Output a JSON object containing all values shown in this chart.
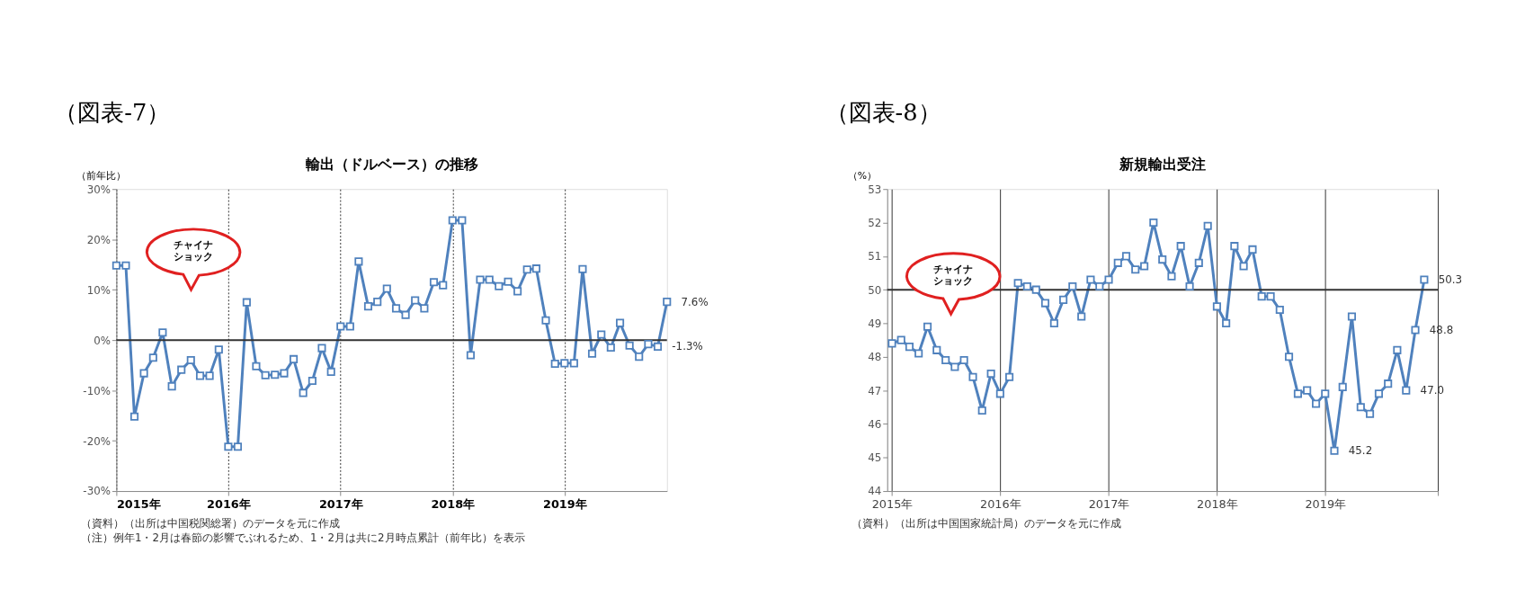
{
  "chart_data": [
    {
      "type": "line",
      "subtitle": "（図表-7）",
      "title": "輸出（ドルベース）の推移",
      "ylabel": "（前年比）",
      "x": [
        "2015-01",
        "2015-02",
        "2015-03",
        "2015-04",
        "2015-05",
        "2015-06",
        "2015-07",
        "2015-08",
        "2015-09",
        "2015-10",
        "2015-11",
        "2015-12",
        "2016-01",
        "2016-02",
        "2016-03",
        "2016-04",
        "2016-05",
        "2016-06",
        "2016-07",
        "2016-08",
        "2016-09",
        "2016-10",
        "2016-11",
        "2016-12",
        "2017-01",
        "2017-02",
        "2017-03",
        "2017-04",
        "2017-05",
        "2017-06",
        "2017-07",
        "2017-08",
        "2017-09",
        "2017-10",
        "2017-11",
        "2017-12",
        "2018-01",
        "2018-02",
        "2018-03",
        "2018-04",
        "2018-05",
        "2018-06",
        "2018-07",
        "2018-08",
        "2018-09",
        "2018-10",
        "2018-11",
        "2018-12",
        "2019-01",
        "2019-02",
        "2019-03",
        "2019-04",
        "2019-05",
        "2019-06",
        "2019-07",
        "2019-08",
        "2019-09",
        "2019-10",
        "2019-11",
        "2019-12"
      ],
      "xlim": [
        "2015-01",
        "2019-12"
      ],
      "xticks": [
        {
          "value": "2015-01",
          "label": "2015年"
        },
        {
          "value": "2016-01",
          "label": "2016年"
        },
        {
          "value": "2017-01",
          "label": "2017年"
        },
        {
          "value": "2018-01",
          "label": "2018年"
        },
        {
          "value": "2019-01",
          "label": "2019年"
        }
      ],
      "ylim": [
        -30,
        30
      ],
      "yticks": [
        {
          "value": -30,
          "label": "-30%"
        },
        {
          "value": -20,
          "label": "-20%"
        },
        {
          "value": -10,
          "label": "-10%"
        },
        {
          "value": 0,
          "label": "0%"
        },
        {
          "value": 10,
          "label": "10%"
        },
        {
          "value": 20,
          "label": "20%"
        },
        {
          "value": 30,
          "label": "30%"
        }
      ],
      "grid": "x",
      "marker": "square",
      "line_style": "solid",
      "ref_lines": [
        {
          "axis": "y",
          "value": 0
        }
      ],
      "series": [
        {
          "color": "#4f81bd",
          "values": [
            14.8,
            14.8,
            -15.2,
            -6.6,
            -3.5,
            1.5,
            -9.2,
            -5.9,
            -4.0,
            -7.1,
            -7.1,
            -1.9,
            -21.2,
            -21.2,
            7.5,
            -5.2,
            -7.0,
            -6.9,
            -6.6,
            -3.8,
            -10.5,
            -8.1,
            -1.6,
            -6.3,
            2.7,
            2.7,
            15.6,
            6.7,
            7.6,
            10.2,
            6.3,
            5.0,
            7.9,
            6.3,
            11.5,
            10.9,
            23.8,
            23.8,
            -3.0,
            12.0,
            12.0,
            10.7,
            11.6,
            9.7,
            14.0,
            14.2,
            3.9,
            -4.7,
            -4.6,
            -4.6,
            14.1,
            -2.7,
            1.1,
            -1.5,
            3.4,
            -1.1,
            -3.3,
            -0.8,
            -1.3,
            7.6
          ],
          "value_labels": [
            null,
            null,
            null,
            null,
            null,
            null,
            null,
            null,
            null,
            null,
            null,
            null,
            null,
            null,
            null,
            null,
            null,
            null,
            null,
            null,
            null,
            null,
            null,
            null,
            null,
            null,
            null,
            null,
            null,
            null,
            null,
            null,
            null,
            null,
            null,
            null,
            null,
            null,
            null,
            null,
            null,
            null,
            null,
            null,
            null,
            null,
            null,
            null,
            null,
            null,
            null,
            null,
            null,
            null,
            null,
            null,
            null,
            null,
            "-1.3%",
            "7.6%"
          ]
        }
      ],
      "annotations": [
        "チャイナショック",
        "（資料）（出所は中国税関総署）のデータを元に作成",
        "（注）例年1・2月は春節の影響でぶれるため、1・2月は共に2月時点累計（前年比）を表示"
      ]
    },
    {
      "type": "line",
      "subtitle": "（図表-8）",
      "title": "新規輸出受注",
      "ylabel": "（%）",
      "x": [
        "2015-01",
        "2015-02",
        "2015-03",
        "2015-04",
        "2015-05",
        "2015-06",
        "2015-07",
        "2015-08",
        "2015-09",
        "2015-10",
        "2015-11",
        "2015-12",
        "2016-01",
        "2016-02",
        "2016-03",
        "2016-04",
        "2016-05",
        "2016-06",
        "2016-07",
        "2016-08",
        "2016-09",
        "2016-10",
        "2016-11",
        "2016-12",
        "2017-01",
        "2017-02",
        "2017-03",
        "2017-04",
        "2017-05",
        "2017-06",
        "2017-07",
        "2017-08",
        "2017-09",
        "2017-10",
        "2017-11",
        "2017-12",
        "2018-01",
        "2018-02",
        "2018-03",
        "2018-04",
        "2018-05",
        "2018-06",
        "2018-07",
        "2018-08",
        "2018-09",
        "2018-10",
        "2018-11",
        "2018-12",
        "2019-01",
        "2019-02",
        "2019-03",
        "2019-04",
        "2019-05",
        "2019-06",
        "2019-07",
        "2019-08",
        "2019-09",
        "2019-10",
        "2019-11",
        "2019-12"
      ],
      "xlim": [
        "2014-12-16",
        "2020-01-16"
      ],
      "xticks": [
        {
          "value": "2015-01",
          "label": "2015年"
        },
        {
          "value": "2016-01",
          "label": "2016年"
        },
        {
          "value": "2017-01",
          "label": "2017年"
        },
        {
          "value": "2018-01",
          "label": "2018年"
        },
        {
          "value": "2019-01",
          "label": "2019年"
        },
        {
          "value": "2020-01-16",
          "label": null
        }
      ],
      "ylim": [
        44,
        53
      ],
      "yticks": [
        44,
        45,
        46,
        47,
        48,
        49,
        50,
        51,
        52,
        53
      ],
      "grid": "x",
      "marker": "square",
      "line_style": "solid",
      "ref_lines": [
        {
          "axis": "y",
          "value": 50
        }
      ],
      "series": [
        {
          "color": "#4f81bd",
          "values": [
            48.4,
            48.5,
            48.3,
            48.1,
            48.9,
            48.2,
            47.9,
            47.7,
            47.9,
            47.4,
            46.4,
            47.5,
            46.9,
            47.4,
            50.2,
            50.1,
            50.0,
            49.6,
            49.0,
            49.7,
            50.1,
            49.2,
            50.3,
            50.1,
            50.3,
            50.8,
            51.0,
            50.6,
            50.7,
            52.0,
            50.9,
            50.4,
            51.3,
            50.1,
            50.8,
            51.9,
            49.5,
            49.0,
            51.3,
            50.7,
            51.2,
            49.8,
            49.8,
            49.4,
            48.0,
            46.9,
            47.0,
            46.6,
            46.9,
            45.2,
            47.1,
            49.2,
            46.5,
            46.3,
            46.9,
            47.2,
            48.2,
            47.0,
            48.8,
            50.3
          ],
          "value_labels": [
            null,
            null,
            null,
            null,
            null,
            null,
            null,
            null,
            null,
            null,
            null,
            null,
            null,
            null,
            null,
            null,
            null,
            null,
            null,
            null,
            null,
            null,
            null,
            null,
            null,
            null,
            null,
            null,
            null,
            null,
            null,
            null,
            null,
            null,
            null,
            null,
            null,
            null,
            null,
            null,
            null,
            null,
            null,
            null,
            null,
            null,
            null,
            null,
            null,
            "45.2",
            null,
            null,
            null,
            null,
            null,
            null,
            null,
            "47.0",
            "48.8",
            "50.3"
          ]
        }
      ],
      "annotations": [
        "チャイナショック",
        "（資料）（出所は中国国家統計局）のデータを元に作成"
      ]
    }
  ]
}
